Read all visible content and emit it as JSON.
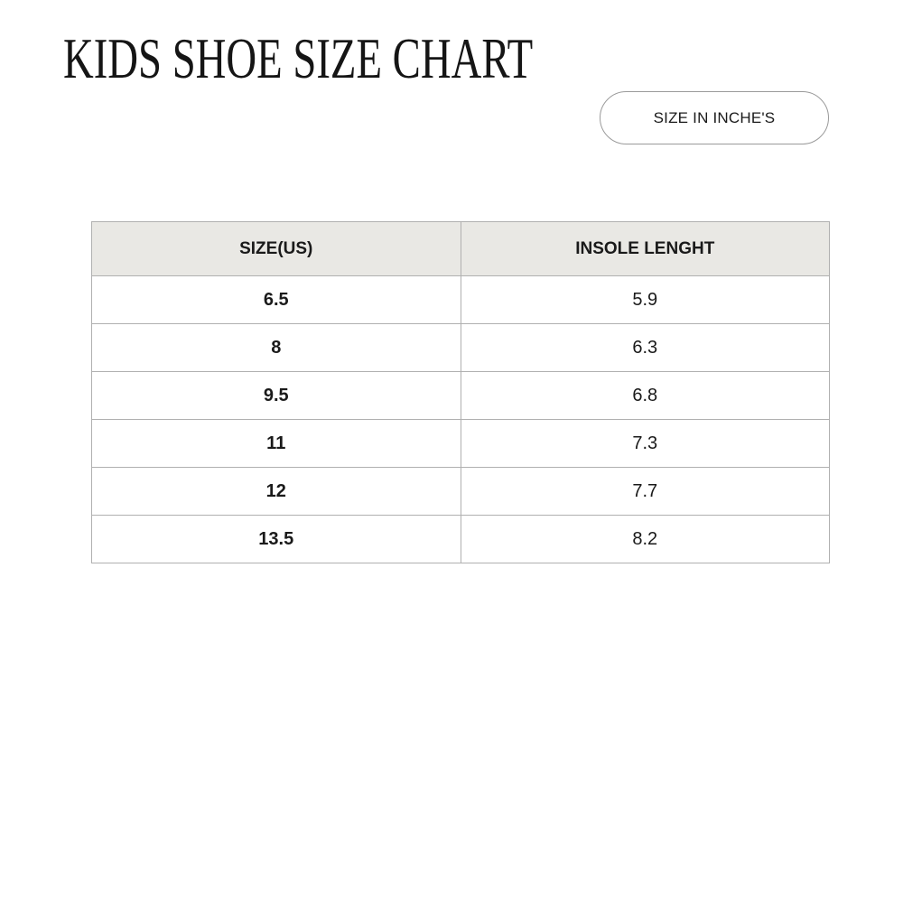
{
  "title": "KIDS SHOE SIZE CHART",
  "unit_label": "SIZE IN INCHE'S",
  "table": {
    "headers": [
      "SIZE(US)",
      "INSOLE LENGHT"
    ],
    "rows": [
      {
        "size": "6.5",
        "insole": "5.9"
      },
      {
        "size": "8",
        "insole": "6.3"
      },
      {
        "size": "9.5",
        "insole": "6.8"
      },
      {
        "size": "11",
        "insole": "7.3"
      },
      {
        "size": "12",
        "insole": "7.7"
      },
      {
        "size": "13.5",
        "insole": "8.2"
      }
    ]
  },
  "colors": {
    "header_bg": "#e9e8e4",
    "border": "#b0b0b0",
    "text": "#1a1a1a"
  }
}
